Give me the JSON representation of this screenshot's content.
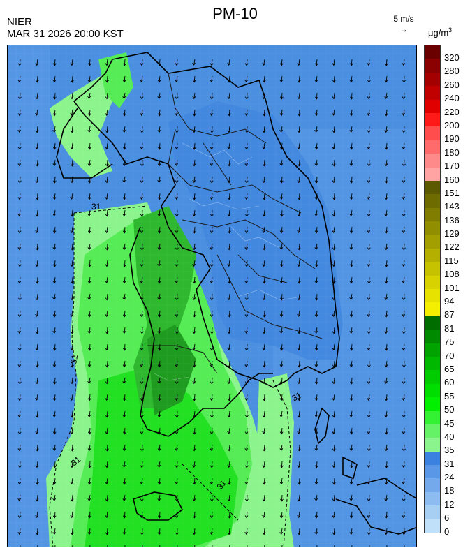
{
  "header": {
    "title": "PM-10",
    "agency": "NIER",
    "datetime": "MAR 31 2026 20:00 KST",
    "wind_scale_label": "5 m/s",
    "unit": "μg/m",
    "unit_sup": "3"
  },
  "map": {
    "contour_label": "31",
    "background_color": "#4a8fe0",
    "wind_direction": "south-southwest"
  },
  "colorbar": {
    "labels": [
      "320",
      "280",
      "260",
      "240",
      "220",
      "200",
      "190",
      "180",
      "170",
      "160",
      "151",
      "143",
      "136",
      "129",
      "122",
      "115",
      "108",
      "101",
      "94",
      "87",
      "81",
      "75",
      "70",
      "65",
      "60",
      "55",
      "50",
      "45",
      "40",
      "35",
      "31",
      "24",
      "18",
      "12",
      "6",
      "0"
    ],
    "colors": [
      "#6b0000",
      "#8b0000",
      "#a50000",
      "#c00000",
      "#e00000",
      "#ff1a1a",
      "#ff4d4d",
      "#ff6b6b",
      "#ff8a8a",
      "#ffa3a3",
      "#5c5a00",
      "#6e6c00",
      "#807d00",
      "#918e00",
      "#a39f00",
      "#b5b000",
      "#c7c200",
      "#d8d300",
      "#e8e200",
      "#f4ee00",
      "#006d00",
      "#008a00",
      "#00a300",
      "#00b800",
      "#00cc00",
      "#00de00",
      "#00f000",
      "#33f233",
      "#66f266",
      "#8cf48c",
      "#3b82e0",
      "#5a97e6",
      "#74aaec",
      "#8dbdf0",
      "#a7cff4",
      "#bfe0f8"
    ]
  }
}
